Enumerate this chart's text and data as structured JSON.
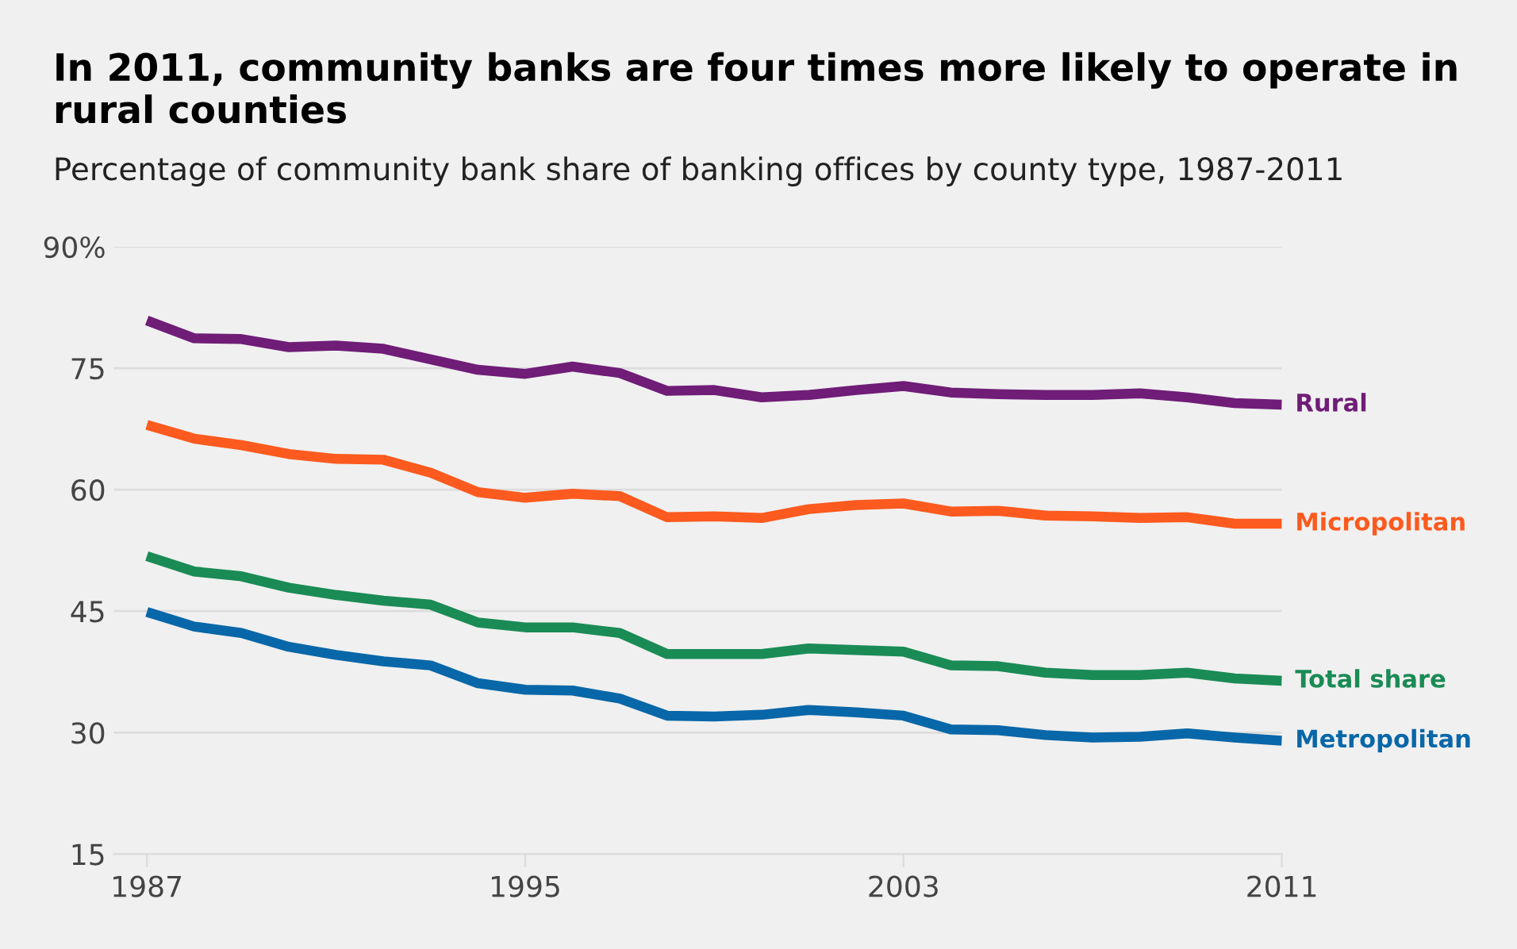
{
  "chart_data": {
    "type": "line",
    "title": "In 2011, community banks are four times more likely to operate in rural counties",
    "subtitle": "Percentage of community bank share of banking offices by county type, 1987-2011",
    "x": [
      1987,
      1988,
      1989,
      1990,
      1991,
      1992,
      1993,
      1994,
      1995,
      1996,
      1997,
      1998,
      1999,
      2000,
      2001,
      2002,
      2003,
      2004,
      2005,
      2006,
      2007,
      2008,
      2009,
      2010,
      2011
    ],
    "series": [
      {
        "name": "Rural",
        "color": "#6f1d77",
        "values": [
          80.9,
          78.7,
          78.6,
          77.6,
          77.8,
          77.4,
          76.1,
          74.8,
          74.3,
          75.2,
          74.4,
          72.2,
          72.3,
          71.4,
          71.7,
          72.3,
          72.8,
          72.0,
          71.8,
          71.7,
          71.7,
          71.9,
          71.4,
          70.7,
          70.5
        ]
      },
      {
        "name": "Micropolitan",
        "color": "#fc5a1e",
        "values": [
          68.0,
          66.3,
          65.5,
          64.4,
          63.8,
          63.7,
          62.1,
          59.7,
          59.0,
          59.5,
          59.2,
          56.6,
          56.7,
          56.5,
          57.6,
          58.1,
          58.3,
          57.3,
          57.4,
          56.8,
          56.7,
          56.5,
          56.6,
          55.8,
          55.8
        ]
      },
      {
        "name": "Total share",
        "color": "#1a8b55",
        "values": [
          51.8,
          49.9,
          49.3,
          47.9,
          47.0,
          46.3,
          45.8,
          43.6,
          43.0,
          43.0,
          42.3,
          39.7,
          39.7,
          39.7,
          40.4,
          40.2,
          40.0,
          38.3,
          38.2,
          37.4,
          37.1,
          37.1,
          37.4,
          36.7,
          36.4
        ]
      },
      {
        "name": "Metropolitan",
        "color": "#0867a8",
        "values": [
          44.9,
          43.1,
          42.3,
          40.6,
          39.6,
          38.8,
          38.3,
          36.1,
          35.3,
          35.2,
          34.2,
          32.1,
          32.0,
          32.2,
          32.8,
          32.5,
          32.1,
          30.4,
          30.3,
          29.7,
          29.4,
          29.5,
          29.9,
          29.4,
          29.0
        ]
      }
    ],
    "xlim": [
      1986.3,
      2011
    ],
    "xticks": [
      1987,
      1995,
      2003,
      2011
    ],
    "ylim": [
      15,
      90
    ],
    "yticks": [
      15,
      30,
      45,
      60,
      75,
      {
        "value": 90,
        "label": "90%"
      }
    ],
    "grid": "y",
    "legend": false,
    "line_style": "solid",
    "marker": "none"
  }
}
